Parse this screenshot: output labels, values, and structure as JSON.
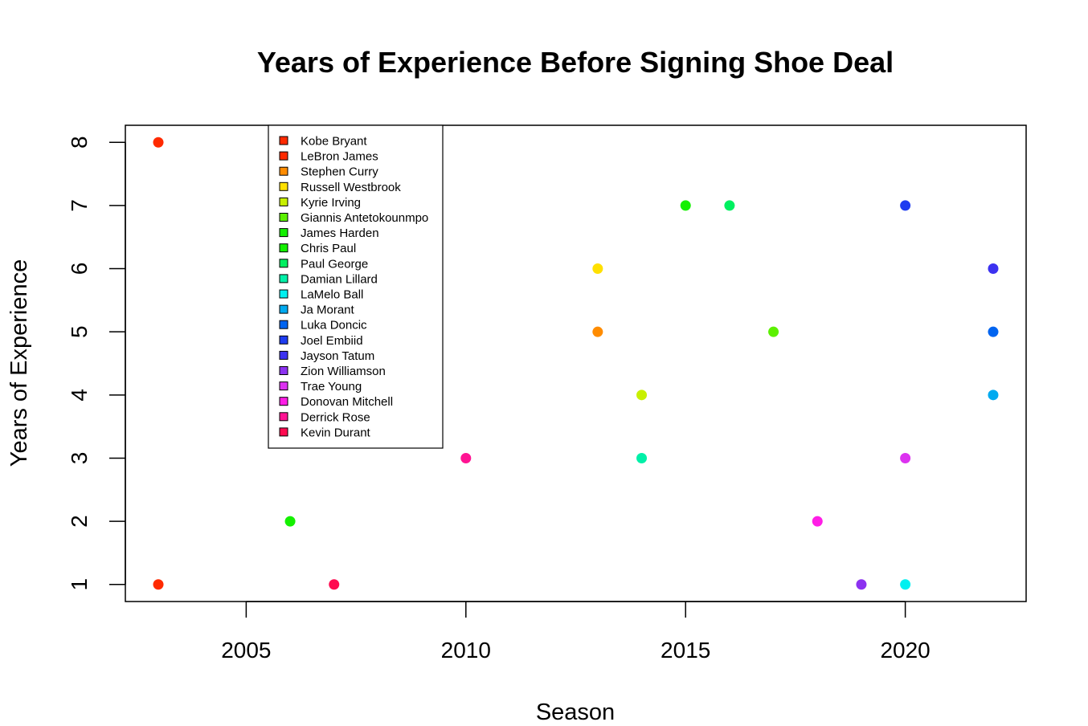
{
  "chart_data": {
    "type": "scatter",
    "title": "Years of Experience Before Signing Shoe Deal",
    "xlabel": "Season",
    "ylabel": "Years of Experience",
    "xlim": [
      2002.25,
      2022.75
    ],
    "ylim": [
      0.73,
      8.27
    ],
    "xticks": [
      2005,
      2010,
      2015,
      2020
    ],
    "yticks": [
      1,
      2,
      3,
      4,
      5,
      6,
      7,
      8
    ],
    "grid": false,
    "legend_position": "top-left",
    "series": [
      {
        "name": "Kobe Bryant",
        "color": "#FF2A00",
        "x": 2003,
        "y": 8
      },
      {
        "name": "LeBron James",
        "color": "#FF2A00",
        "x": 2003,
        "y": 1
      },
      {
        "name": "Stephen Curry",
        "color": "#FF8C00",
        "x": 2013,
        "y": 5
      },
      {
        "name": "Russell Westbrook",
        "color": "#FFE000",
        "x": 2013,
        "y": 6
      },
      {
        "name": "Kyrie Irving",
        "color": "#C8F000",
        "x": 2014,
        "y": 4
      },
      {
        "name": "Giannis Antetokounmpo",
        "color": "#5CF000",
        "x": 2017,
        "y": 5
      },
      {
        "name": "James Harden",
        "color": "#14F000",
        "x": 2006,
        "y": 2
      },
      {
        "name": "Chris Paul",
        "color": "#14F000",
        "x": 2015,
        "y": 7
      },
      {
        "name": "Paul George",
        "color": "#00F060",
        "x": 2016,
        "y": 7
      },
      {
        "name": "Damian Lillard",
        "color": "#00F0A8",
        "x": 2014,
        "y": 3
      },
      {
        "name": "LaMelo Ball",
        "color": "#00F0F0",
        "x": 2020,
        "y": 1
      },
      {
        "name": "Ja Morant",
        "color": "#00AAF0",
        "x": 2022,
        "y": 4
      },
      {
        "name": "Luka Doncic",
        "color": "#0064F0",
        "x": 2022,
        "y": 5
      },
      {
        "name": "Joel Embiid",
        "color": "#1E3CF0",
        "x": 2020,
        "y": 7
      },
      {
        "name": "Jayson Tatum",
        "color": "#3C32F0",
        "x": 2022,
        "y": 6
      },
      {
        "name": "Zion Williamson",
        "color": "#8C32F0",
        "x": 2019,
        "y": 1
      },
      {
        "name": "Trae Young",
        "color": "#DC32F0",
        "x": 2020,
        "y": 3
      },
      {
        "name": "Donovan Mitchell",
        "color": "#FF1EE6",
        "x": 2018,
        "y": 2
      },
      {
        "name": "Derrick Rose",
        "color": "#FF1493",
        "x": 2010,
        "y": 3
      },
      {
        "name": "Kevin Durant",
        "color": "#FF0A50",
        "x": 2007,
        "y": 1
      }
    ]
  }
}
